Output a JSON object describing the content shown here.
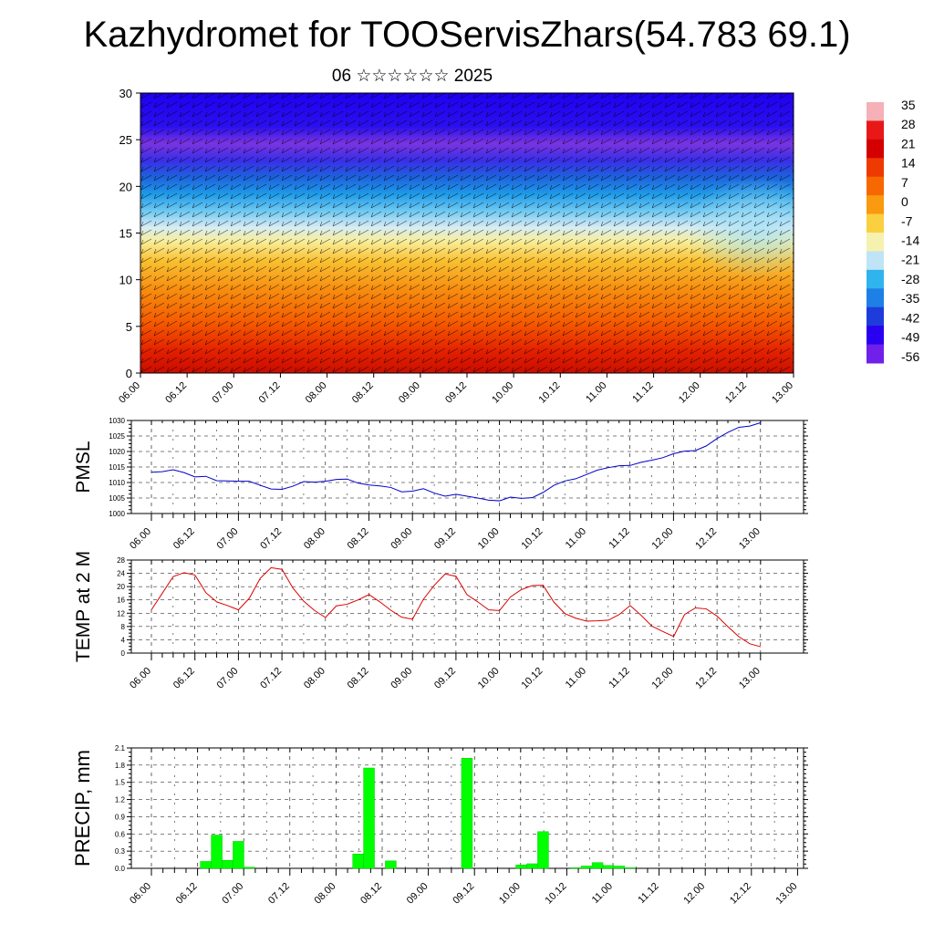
{
  "title": "Kazhydromet for TOOServisZhars(54.783 69.1)",
  "subtitle": "06 ☆☆☆☆☆☆ 2025",
  "colors": {
    "pmsl_line": "#0000cc",
    "temp_line": "#dd0000",
    "precip_bar": "#00ff00",
    "grid": "#000000"
  },
  "time_labels": [
    "06.00",
    "06.12",
    "07.00",
    "07.12",
    "08.00",
    "08.12",
    "09.00",
    "09.12",
    "10.00",
    "10.12",
    "11.00",
    "11.12",
    "12.00",
    "12.12",
    "13.00"
  ],
  "chart_data": [
    {
      "type": "heatmap",
      "name": "cross-section",
      "ylim": [
        0,
        30
      ],
      "yticks": [
        0,
        5,
        10,
        15,
        20,
        25,
        30
      ],
      "xtick_labels": [
        "06.00",
        "06.12",
        "07.00",
        "07.12",
        "08.00",
        "08.12",
        "09.00",
        "09.12",
        "10.00",
        "10.12",
        "11.00",
        "11.12",
        "12.00",
        "12.12",
        "13.00"
      ],
      "colorbar": {
        "labels": [
          "35",
          "28",
          "21",
          "14",
          "7",
          "0",
          "-7",
          "-14",
          "-21",
          "-28",
          "-35",
          "-42",
          "-49",
          "-56"
        ],
        "stops": [
          "#f5b0b8",
          "#e81818",
          "#d40000",
          "#ee3a00",
          "#f86800",
          "#f99a10",
          "#fbd040",
          "#f5f2b0",
          "#bfe4f5",
          "#30b4ee",
          "#1e80e6",
          "#1e3cdc",
          "#2a00f0",
          "#7020e8"
        ]
      }
    },
    {
      "type": "line",
      "name": "pmsl",
      "ylabel": "PMSL",
      "ylim": [
        1000,
        1030
      ],
      "yticks": [
        1000,
        1005,
        1010,
        1015,
        1020,
        1025,
        1030
      ],
      "xtick_labels": [
        "06.00",
        "06.12",
        "07.00",
        "07.12",
        "08.00",
        "08.12",
        "09.00",
        "09.12",
        "10.00",
        "10.12",
        "11.00",
        "11.12",
        "12.00",
        "12.12",
        "13.00"
      ],
      "series": [
        {
          "values": [
            1013.3,
            1013.5,
            1014.1,
            1013.2,
            1011.8,
            1012.0,
            1010.6,
            1010.5,
            1010.4,
            1010.4,
            1009.1,
            1007.9,
            1007.8,
            1008.8,
            1010.3,
            1010.1,
            1010.4,
            1011.0,
            1011.1,
            1009.8,
            1009.2,
            1008.9,
            1008.4,
            1007.0,
            1007.2,
            1008.0,
            1006.6,
            1005.6,
            1006.2,
            1005.6,
            1005.0,
            1004.3,
            1004.1,
            1005.3,
            1004.9,
            1005.1,
            1006.8,
            1009.1,
            1010.5,
            1011.2,
            1012.6,
            1014.0,
            1014.8,
            1015.4,
            1015.5,
            1016.5,
            1017.2,
            1018.0,
            1019.3,
            1020.1,
            1020.3,
            1021.8,
            1024.2,
            1026.2,
            1027.8,
            1028.2,
            1029.3
          ]
        }
      ]
    },
    {
      "type": "line",
      "name": "temp",
      "ylabel": "TEMP at 2 M",
      "ylim": [
        0,
        28
      ],
      "yticks": [
        0,
        4,
        8,
        12,
        16,
        20,
        24,
        28
      ],
      "xtick_labels": [
        "06.00",
        "06.12",
        "07.00",
        "07.12",
        "08.00",
        "08.12",
        "09.00",
        "09.12",
        "10.00",
        "10.12",
        "11.00",
        "11.12",
        "12.00",
        "12.12",
        "13.00"
      ],
      "series": [
        {
          "values": [
            13.0,
            18.0,
            23.0,
            24.2,
            23.5,
            18.2,
            15.4,
            14.3,
            13.0,
            16.5,
            22.5,
            25.7,
            25.2,
            19.6,
            15.6,
            12.8,
            10.7,
            14.2,
            14.7,
            16.0,
            17.6,
            15.4,
            12.9,
            10.8,
            10.2,
            16.2,
            20.4,
            23.8,
            23.1,
            17.6,
            15.4,
            13.0,
            12.8,
            16.9,
            19.1,
            20.3,
            20.4,
            15.3,
            11.9,
            10.5,
            9.6,
            9.7,
            9.9,
            11.6,
            14.3,
            11.4,
            8.1,
            6.5,
            5.0,
            11.6,
            13.6,
            13.3,
            11.1,
            7.9,
            4.9,
            2.8,
            1.9
          ]
        }
      ]
    },
    {
      "type": "bar",
      "name": "precip",
      "ylabel": "PRECIP, mm",
      "ylim": [
        0,
        2.1
      ],
      "yticks": [
        "0.0",
        "0.3",
        "0.6",
        "0.9",
        "1.2",
        "1.5",
        "1.8",
        "2.1"
      ],
      "xtick_labels": [
        "06.00",
        "06.12",
        "07.00",
        "07.12",
        "08.00",
        "08.12",
        "09.00",
        "09.12",
        "10.00",
        "10.12",
        "11.00",
        "11.12",
        "12.00",
        "12.12",
        "13.00"
      ],
      "values": [
        0,
        0,
        0,
        0,
        0,
        0.12,
        0.58,
        0.14,
        0.47,
        0.02,
        0,
        0,
        0,
        0,
        0,
        0,
        0,
        0,
        0,
        0.25,
        1.75,
        0,
        0.13,
        0,
        0,
        0,
        0,
        0,
        0,
        1.92,
        0,
        0,
        0,
        0,
        0.06,
        0.08,
        0.64,
        0,
        0,
        0.01,
        0.04,
        0.1,
        0.05,
        0.04,
        0.01,
        0,
        0,
        0,
        0,
        0,
        0,
        0,
        0,
        0,
        0,
        0,
        0
      ]
    }
  ]
}
